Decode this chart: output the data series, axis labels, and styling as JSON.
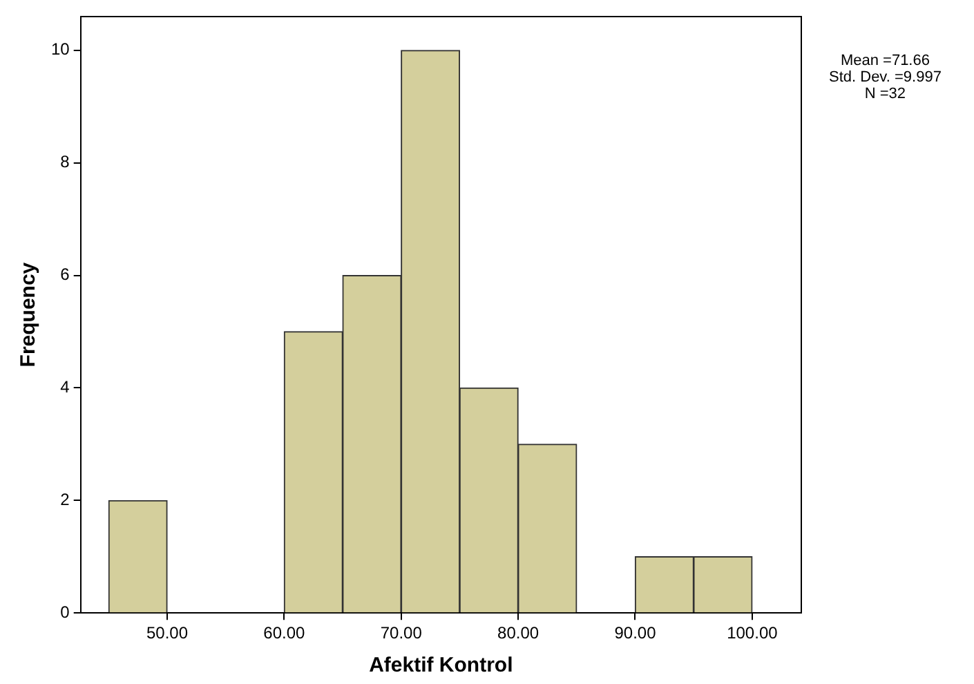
{
  "chart_data": {
    "type": "histogram",
    "xlabel": "Afektif Kontrol",
    "ylabel": "Frequency",
    "bins": [
      45,
      50,
      55,
      60,
      65,
      70,
      75,
      80,
      85,
      90,
      95,
      100
    ],
    "values": [
      2,
      0,
      0,
      5,
      6,
      10,
      4,
      3,
      0,
      1,
      1
    ],
    "color": "#d4cf9c",
    "xlim": [
      42.6,
      104.2
    ],
    "xticks": [
      {
        "value": 50,
        "label": "50.00"
      },
      {
        "value": 60,
        "label": "60.00"
      },
      {
        "value": 70,
        "label": "70.00"
      },
      {
        "value": 80,
        "label": "80.00"
      },
      {
        "value": 90,
        "label": "90.00"
      },
      {
        "value": 100,
        "label": "100.00"
      }
    ],
    "ylim": [
      0,
      10.6
    ],
    "yticks": [
      0,
      2,
      4,
      6,
      8,
      10
    ],
    "grid": false,
    "legend": false,
    "annotations": [
      "Mean =71.66",
      "Std. Dev. =9.997",
      "N =32"
    ]
  }
}
